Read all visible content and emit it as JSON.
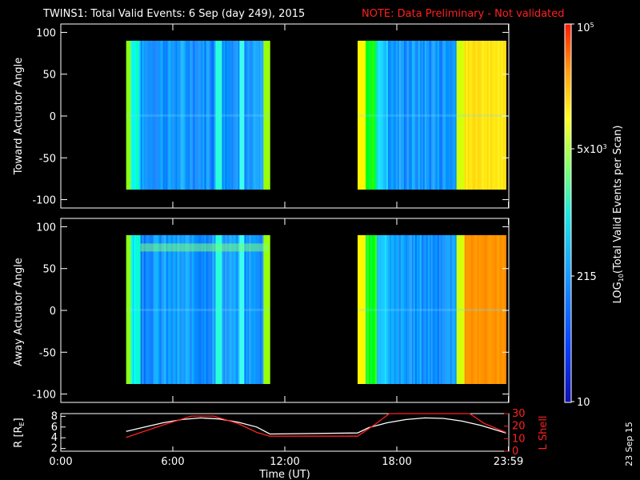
{
  "title": "TWINS1: Total Valid Events:  6 Sep (day 249), 2015",
  "note": "NOTE: Data Preliminary - Not validated",
  "date_stamp": "23 Sep 15",
  "colors": {
    "background": "#000000",
    "note": "#ff2020",
    "axis": "#ffffff",
    "orbit_r": "#ffffff",
    "orbit_lshell": "#ff2020"
  },
  "chart_data": [
    {
      "type": "heatmap",
      "ylabel": "Toward Actuator Angle",
      "ylim": [
        -110,
        110
      ],
      "yticks": [
        -100,
        -50,
        0,
        50,
        100
      ],
      "xlim": [
        0,
        24
      ],
      "data_blocks": [
        {
          "x_start": 3.5,
          "x_end": 11.2,
          "y_start": -88,
          "y_end": 90
        },
        {
          "x_start": 15.9,
          "x_end": 23.85,
          "y_start": -88,
          "y_end": 90
        }
      ],
      "grid": false
    },
    {
      "type": "heatmap",
      "ylabel": "Away Actuator Angle",
      "ylim": [
        -110,
        110
      ],
      "yticks": [
        -100,
        -50,
        0,
        50,
        100
      ],
      "xlim": [
        0,
        24
      ],
      "data_blocks": [
        {
          "x_start": 3.5,
          "x_end": 11.2,
          "y_start": -88,
          "y_end": 90
        },
        {
          "x_start": 15.9,
          "x_end": 23.85,
          "y_start": -88,
          "y_end": 90
        }
      ],
      "grid": false
    },
    {
      "type": "line",
      "xlabel": "Time (UT)",
      "xticks": [
        "0:00",
        "6:00",
        "12:00",
        "18:00",
        "23:59"
      ],
      "xtick_values": [
        0,
        6,
        12,
        18,
        23.98
      ],
      "ylabel_left": "R [RE]",
      "ylabel_left_main": "R [R",
      "ylabel_left_sub": "E",
      "ylabel_left_end": "]",
      "ylim_left": [
        1.5,
        8.5
      ],
      "yticks_left": [
        2,
        4,
        6,
        8
      ],
      "ylabel_right": "L Shell",
      "ylim_right": [
        0,
        30
      ],
      "yticks_right": [
        0,
        10,
        20,
        30
      ],
      "series": [
        {
          "axis": "left",
          "color": "#ffffff",
          "x": [
            3.5,
            4.5,
            5.5,
            6.5,
            7.5,
            8.5,
            9.5,
            10.5,
            11.2,
            15.9,
            16.5,
            17.5,
            18.5,
            19.5,
            20.5,
            21.5,
            22.5,
            23.85
          ],
          "y": [
            5.2,
            6.0,
            6.8,
            7.4,
            7.7,
            7.5,
            6.9,
            6.0,
            4.7,
            4.9,
            5.9,
            6.8,
            7.4,
            7.7,
            7.6,
            7.1,
            6.3,
            4.9
          ]
        },
        {
          "axis": "right",
          "color": "#ff2020",
          "x": [
            3.5,
            5.5,
            7.0,
            8.2,
            9.5,
            10.5,
            11.2,
            15.9,
            16.8,
            17.6,
            21.9,
            22.7,
            23.85
          ],
          "y": [
            11,
            21,
            28,
            28,
            22,
            15,
            12,
            12,
            21,
            30,
            30,
            22,
            15
          ]
        }
      ]
    }
  ],
  "colorbar": {
    "label": "LOG10(Total Valid Events per Scan)",
    "label_pre": "LOG",
    "label_sub": "10",
    "label_post": "(Total Valid Events per Scan)",
    "scale": "log",
    "min": 10,
    "max": 100000,
    "tick_bottom": "10",
    "tick_mid": "215",
    "tick_upper_base": "5x10",
    "tick_upper_exp": "3",
    "tick_top_base": "10",
    "tick_top_exp": "5",
    "tick_values": [
      10,
      215,
      5000,
      100000
    ]
  }
}
